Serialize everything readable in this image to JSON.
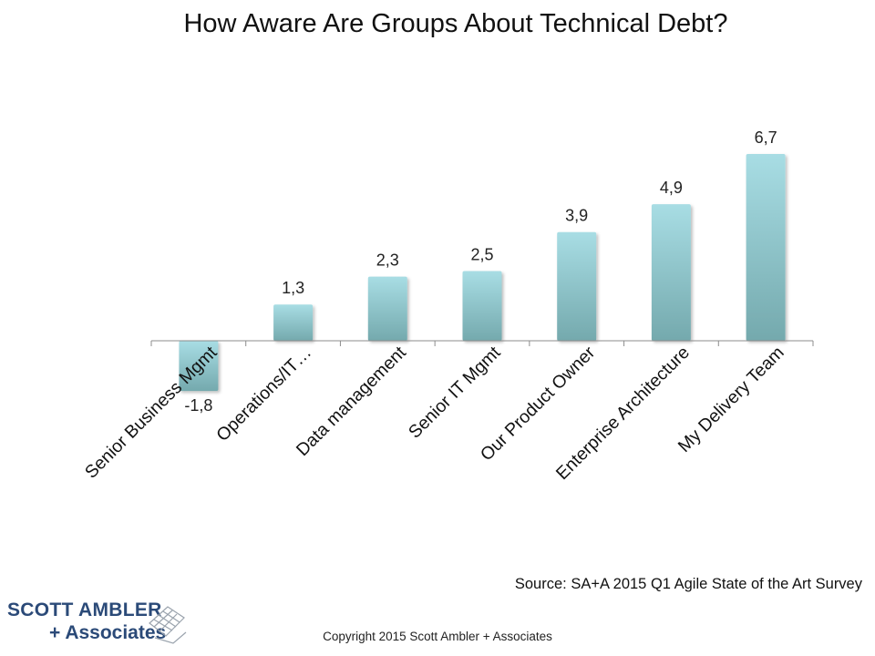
{
  "chart_data": {
    "type": "bar",
    "title": "How Aware Are Groups About Technical Debt?",
    "categories": [
      "Senior Business Mgmt",
      "Operations/IT…",
      "Data management",
      "Senior IT Mgmt",
      "Our Product Owner",
      "Enterprise Architecture",
      "My Delivery Team"
    ],
    "values": [
      -1.8,
      1.3,
      2.3,
      2.5,
      3.9,
      4.9,
      6.7
    ],
    "data_labels": [
      "-1,8",
      "1,3",
      "2,3",
      "2,5",
      "3,9",
      "4,9",
      "6,7"
    ],
    "xlabel": "",
    "ylabel": "",
    "ylim": [
      -1.8,
      6.7
    ],
    "grid": false,
    "legend": "none",
    "colors": {
      "bar_top": "#a8dde4",
      "bar_bottom": "#74a9ad",
      "axis": "#8c8c8c"
    }
  },
  "source_note": "Source: SA+A 2015 Q1 Agile State of the Art Survey",
  "copyright": "Copyright 2015 Scott Ambler + Associates",
  "logo": {
    "line1": "SCOTT AMBLER",
    "line2": "+ Associates",
    "icon": "diamond-grid-logo-icon"
  }
}
